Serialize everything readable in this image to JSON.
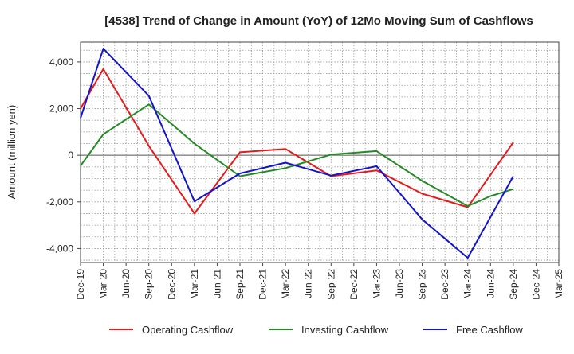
{
  "chart_data": {
    "type": "line",
    "title": "[4538]  Trend of Change in Amount (YoY) of 12Mo Moving Sum of Cashflows",
    "xlabel": "",
    "ylabel": "Amount (million yen)",
    "ylim": [
      -4600,
      4850
    ],
    "yticks": [
      4000,
      2000,
      0,
      -2000,
      -4000
    ],
    "ytick_labels": [
      "4,000",
      "2,000",
      "0",
      "-2,000",
      "-4,000"
    ],
    "categories": [
      "Dec-19",
      "Mar-20",
      "Jun-20",
      "Sep-20",
      "Dec-20",
      "Mar-21",
      "Jun-21",
      "Sep-21",
      "Dec-21",
      "Mar-22",
      "Jun-22",
      "Sep-22",
      "Dec-22",
      "Mar-23",
      "Jun-23",
      "Sep-23",
      "Dec-23",
      "Mar-24",
      "Jun-24",
      "Sep-24",
      "Dec-24",
      "Mar-25"
    ],
    "x_indices": [
      0,
      1,
      3,
      5,
      7,
      9,
      11,
      13,
      15,
      17,
      18,
      19
    ],
    "grid": true,
    "legend_position": "bottom",
    "series": [
      {
        "name": "Operating Cashflow",
        "color": "#e8191b",
        "x": [
          0,
          1,
          3,
          5,
          7,
          9,
          11,
          13,
          15,
          17,
          19
        ],
        "values": [
          2000,
          3700,
          400,
          -2500,
          130,
          270,
          -900,
          -650,
          -1650,
          -2230,
          550
        ]
      },
      {
        "name": "Investing Cashflow",
        "color": "#238b23",
        "x": [
          0,
          1,
          3,
          5,
          7,
          9,
          11,
          13,
          15,
          17,
          18,
          19
        ],
        "values": [
          -450,
          900,
          2180,
          500,
          -900,
          -550,
          30,
          180,
          -1100,
          -2180,
          -1750,
          -1450
        ]
      },
      {
        "name": "Free Cashflow",
        "color": "#1414cc",
        "x": [
          0,
          1,
          3,
          5,
          7,
          9,
          11,
          13,
          15,
          17,
          19
        ],
        "values": [
          1600,
          4570,
          2550,
          -1980,
          -780,
          -320,
          -870,
          -470,
          -2750,
          -4400,
          -900
        ]
      }
    ]
  }
}
